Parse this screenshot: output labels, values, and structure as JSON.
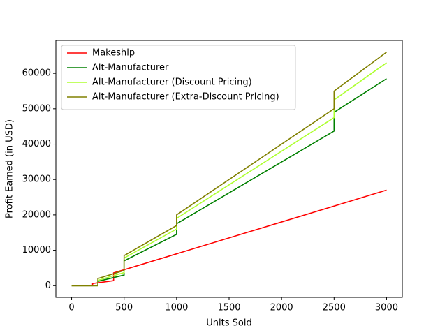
{
  "chart_data": {
    "type": "line",
    "xlabel": "Units Sold",
    "ylabel": "Profit Earned (in USD)",
    "xlim": [
      -150,
      3150
    ],
    "ylim": [
      -3300,
      69300
    ],
    "xticks": [
      0,
      500,
      1000,
      1500,
      2000,
      2500,
      3000
    ],
    "yticks": [
      0,
      10000,
      20000,
      30000,
      40000,
      50000,
      60000
    ],
    "legend": "upper left",
    "series": [
      {
        "name": "Makeship",
        "color": "#ff0000",
        "x": [
          0,
          200,
          200,
          400,
          400,
          3000
        ],
        "values": [
          0,
          0,
          600,
          1400,
          3600,
          27000
        ]
      },
      {
        "name": "Alt-Manufacturer",
        "color": "#008000",
        "x": [
          0,
          250,
          250,
          500,
          500,
          1000,
          1000,
          2500,
          2500,
          3000
        ],
        "values": [
          0,
          0,
          1200,
          3000,
          7000,
          14500,
          17500,
          43700,
          49000,
          58500
        ]
      },
      {
        "name": "Alt-Manufacturer (Discount Pricing)",
        "color": "#adff2f",
        "x": [
          0,
          250,
          250,
          500,
          500,
          1000,
          1000,
          2500,
          2500,
          3000
        ],
        "values": [
          0,
          0,
          1500,
          3700,
          7800,
          16000,
          19000,
          47500,
          52500,
          63000
        ]
      },
      {
        "name": "Alt-Manufacturer (Extra-Discount Pricing)",
        "color": "#808000",
        "x": [
          0,
          250,
          250,
          500,
          500,
          1000,
          1000,
          2500,
          2500,
          3000
        ],
        "values": [
          0,
          0,
          2000,
          4300,
          8500,
          17000,
          20000,
          50000,
          55000,
          66000
        ]
      }
    ]
  }
}
